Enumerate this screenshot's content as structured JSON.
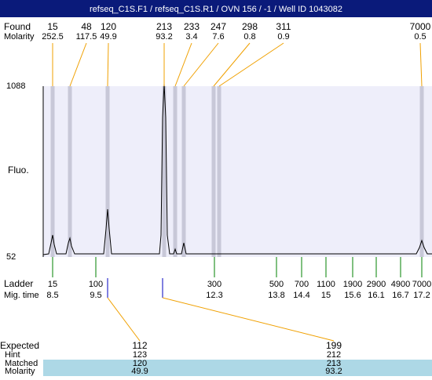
{
  "header": {
    "title": "refseq_C1S.F1 / refseq_C1S.R1 / OVN 156 / -1 / Well ID 1043082"
  },
  "found": {
    "label": "Found",
    "molarity_label": "Molarity",
    "peaks": [
      {
        "size": "15",
        "molarity": "252.5"
      },
      {
        "size": "48",
        "molarity": "117.5"
      },
      {
        "size": "120",
        "molarity": "49.9"
      },
      {
        "size": "213",
        "molarity": "93.2"
      },
      {
        "size": "233",
        "molarity": "3.4"
      },
      {
        "size": "247",
        "molarity": "7.6"
      },
      {
        "size": "298",
        "molarity": "0.8"
      },
      {
        "size": "311",
        "molarity": "0.9"
      },
      {
        "size": "7000",
        "molarity": "0.5"
      }
    ]
  },
  "plot": {
    "y_top": "1088",
    "y_bottom": "52",
    "y_label": "Fluo."
  },
  "ladder": {
    "label": "Ladder",
    "time_label": "Mig. time",
    "entries": [
      {
        "size": "15",
        "time": "8.5"
      },
      {
        "size": "100",
        "time": "9.5"
      },
      {
        "size": "300",
        "time": "12.3"
      },
      {
        "size": "500",
        "time": "13.8"
      },
      {
        "size": "700",
        "time": "14.4"
      },
      {
        "size": "1100",
        "time": "15"
      },
      {
        "size": "1900",
        "time": "15.6"
      },
      {
        "size": "2900",
        "time": "16.1"
      },
      {
        "size": "4900",
        "time": "16.7"
      },
      {
        "size": "7000",
        "time": "17.2"
      }
    ]
  },
  "expected": {
    "labels": [
      "Expected",
      "Hint",
      "Matched",
      "Molarity"
    ],
    "columns": [
      [
        "112",
        "123",
        "120",
        "49.9"
      ],
      [
        "199",
        "212",
        "213",
        "93.2"
      ]
    ]
  }
}
